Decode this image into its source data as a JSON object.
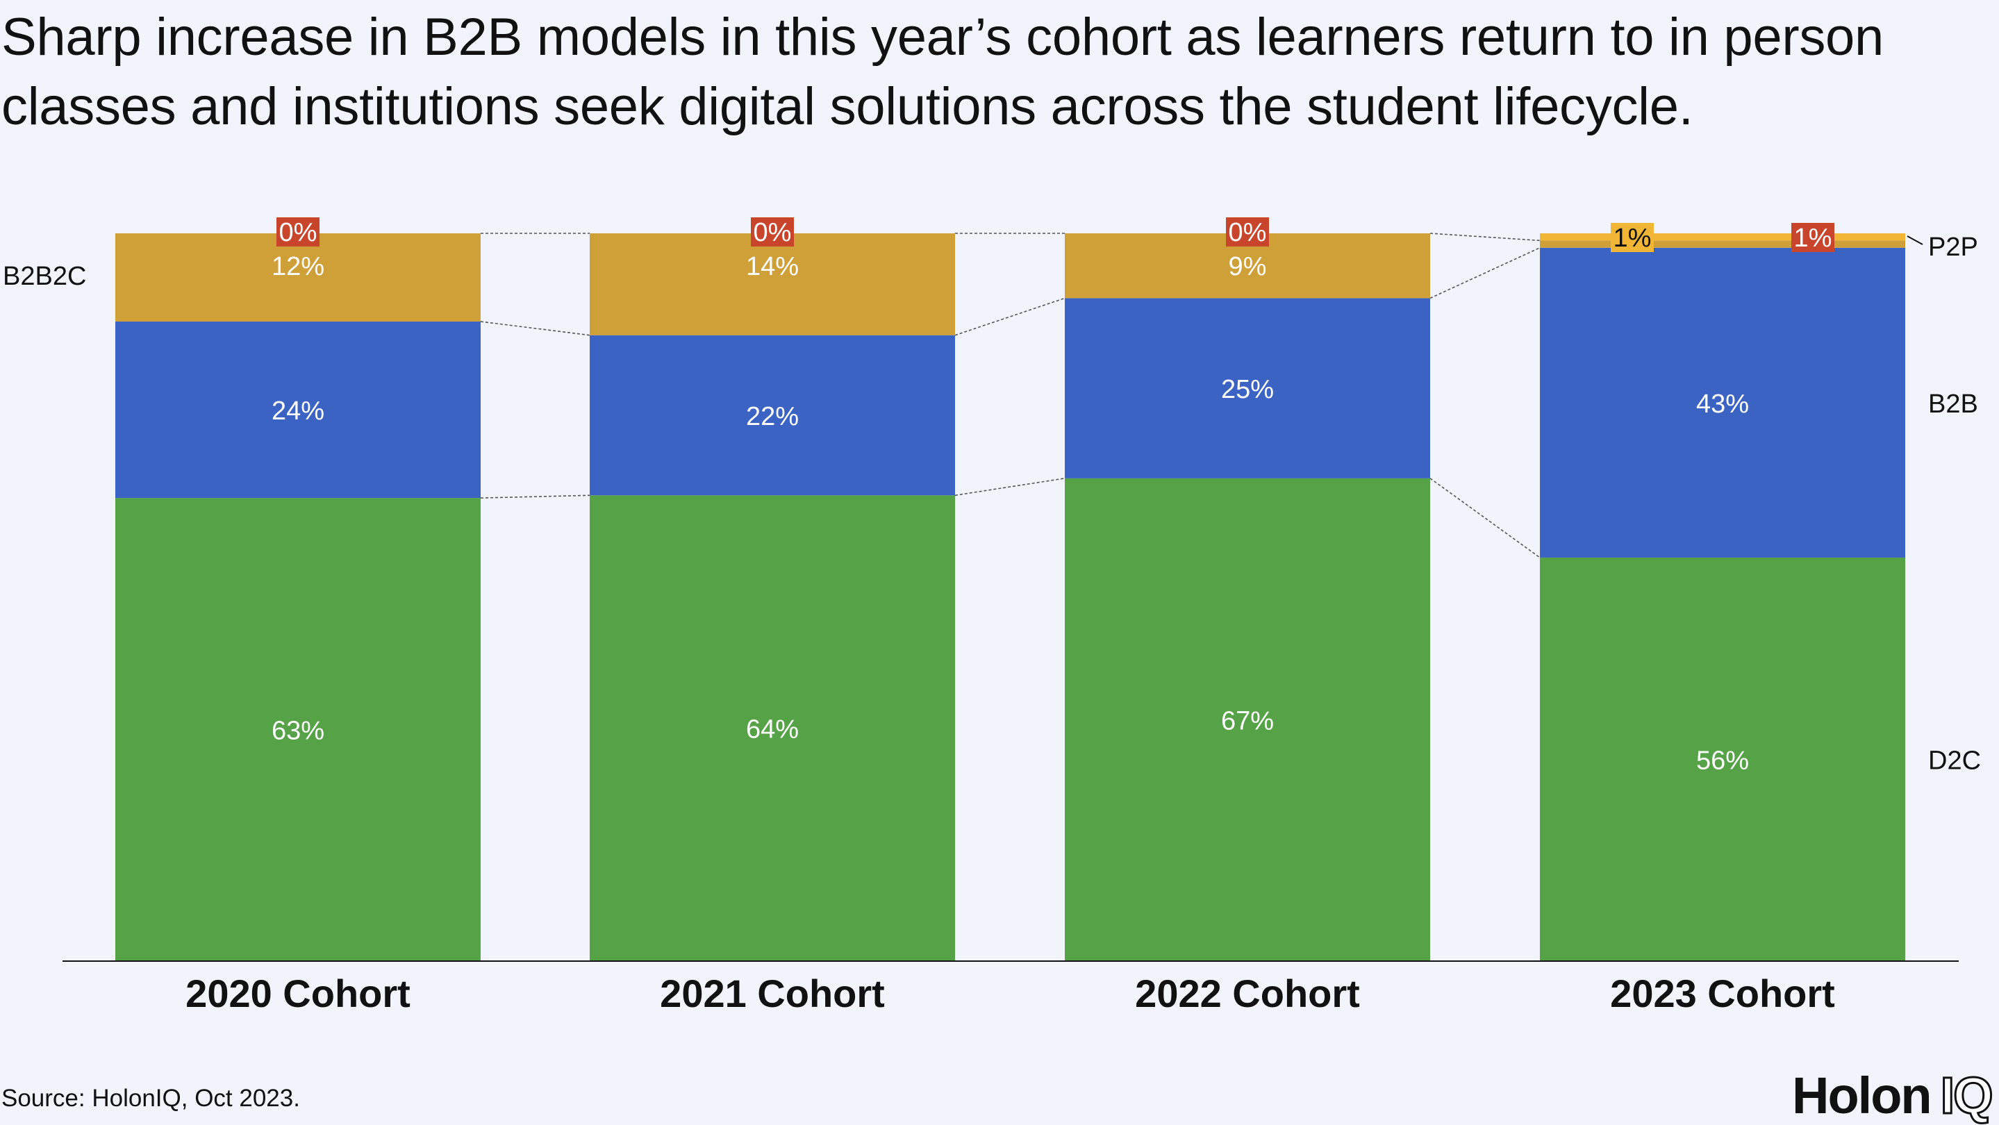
{
  "title": "Sharp increase in B2B models in this year’s cohort as learners return to in person classes and institutions seek digital solutions across the student lifecycle.",
  "source": "Source: HolonIQ, Oct 2023.",
  "logo": {
    "word": "Holon",
    "mark": "IQ"
  },
  "colors": {
    "D2C": "#55a346",
    "B2B": "#3b63c4",
    "B2B2C": "#cf9f38",
    "P2P": "#f2b636",
    "zero_badge": "#c8452c"
  },
  "chart_data": {
    "type": "bar",
    "stacked": true,
    "categories": [
      "2020 Cohort",
      "2021 Cohort",
      "2022 Cohort",
      "2023 Cohort"
    ],
    "series": [
      {
        "name": "D2C",
        "values": [
          63,
          64,
          67,
          56
        ],
        "labels": [
          "63%",
          "64%",
          "67%",
          "56%"
        ]
      },
      {
        "name": "B2B",
        "values": [
          24,
          22,
          25,
          43
        ],
        "labels": [
          "24%",
          "22%",
          "25%",
          "43%"
        ]
      },
      {
        "name": "B2B2C",
        "values": [
          12,
          14,
          9,
          1
        ],
        "labels": [
          "12%",
          "14%",
          "9%",
          "1%"
        ]
      },
      {
        "name": "P2P",
        "values": [
          0,
          0,
          0,
          1
        ],
        "labels": [
          "0%",
          "0%",
          "0%",
          "1%"
        ]
      }
    ],
    "ylim": [
      0,
      100
    ],
    "legend_placement": "inline-labels-beside-bars"
  }
}
